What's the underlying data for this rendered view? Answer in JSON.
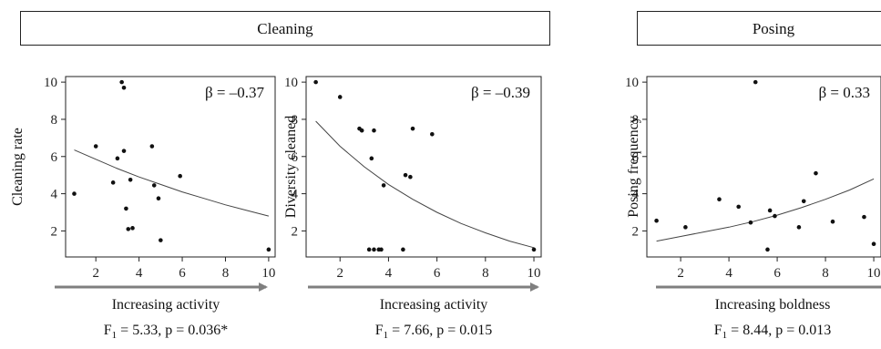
{
  "groups": {
    "cleaning": "Cleaning",
    "posing": "Posing"
  },
  "colors": {
    "axis": "#222222",
    "arrow": "#7f7f7f",
    "points": "#111111",
    "curve": "#444444"
  },
  "chart_data": [
    {
      "type": "scatter",
      "group": "Cleaning",
      "ylabel": "Cleaning rate",
      "xlabel": "Increasing activity",
      "beta": "β = –0.37",
      "stat": {
        "F": "F",
        "sub": "1",
        "rest": " = 5.33, p = 0.036*"
      },
      "xlim": [
        0.6,
        10.3
      ],
      "ylim": [
        0.6,
        10.3
      ],
      "xticks": [
        2,
        4,
        6,
        8,
        10
      ],
      "yticks": [
        2,
        4,
        6,
        8,
        10
      ],
      "points": [
        [
          1,
          4
        ],
        [
          2,
          6.55
        ],
        [
          2.8,
          4.6
        ],
        [
          3,
          5.9
        ],
        [
          3.2,
          10
        ],
        [
          3.3,
          9.7
        ],
        [
          3.3,
          6.3
        ],
        [
          3.4,
          3.2
        ],
        [
          3.5,
          2.1
        ],
        [
          3.6,
          4.75
        ],
        [
          3.7,
          2.15
        ],
        [
          4.6,
          6.55
        ],
        [
          4.7,
          4.45
        ],
        [
          4.9,
          3.75
        ],
        [
          5,
          1.5
        ],
        [
          5.9,
          4.95
        ],
        [
          10,
          1
        ]
      ],
      "fit": [
        [
          1,
          6.35
        ],
        [
          2,
          5.85
        ],
        [
          3,
          5.35
        ],
        [
          4,
          4.9
        ],
        [
          5,
          4.5
        ],
        [
          6,
          4.1
        ],
        [
          7,
          3.75
        ],
        [
          8,
          3.4
        ],
        [
          9,
          3.1
        ],
        [
          10,
          2.8
        ]
      ]
    },
    {
      "type": "scatter",
      "group": "Cleaning",
      "ylabel": "Diversity cleaned",
      "xlabel": "Increasing activity",
      "beta": "β = –0.39",
      "stat": {
        "F": "F",
        "sub": "1",
        "rest": " = 7.66, p = 0.015"
      },
      "xlim": [
        0.6,
        10.3
      ],
      "ylim": [
        0.6,
        10.3
      ],
      "xticks": [
        2,
        4,
        6,
        8,
        10
      ],
      "yticks": [
        2,
        4,
        6,
        8,
        10
      ],
      "points": [
        [
          1,
          10
        ],
        [
          2,
          9.2
        ],
        [
          2.8,
          7.5
        ],
        [
          2.9,
          7.4
        ],
        [
          3.2,
          1
        ],
        [
          3.3,
          5.9
        ],
        [
          3.4,
          7.4
        ],
        [
          3.4,
          1
        ],
        [
          3.6,
          1
        ],
        [
          3.7,
          1
        ],
        [
          3.8,
          4.45
        ],
        [
          4.6,
          1
        ],
        [
          4.7,
          5
        ],
        [
          4.9,
          4.9
        ],
        [
          5,
          7.5
        ],
        [
          5.8,
          7.2
        ],
        [
          10,
          1
        ]
      ],
      "fit": [
        [
          1,
          7.9
        ],
        [
          2,
          6.55
        ],
        [
          3,
          5.45
        ],
        [
          4,
          4.5
        ],
        [
          5,
          3.7
        ],
        [
          6,
          3.0
        ],
        [
          7,
          2.4
        ],
        [
          8,
          1.9
        ],
        [
          9,
          1.45
        ],
        [
          10,
          1.1
        ]
      ]
    },
    {
      "type": "scatter",
      "group": "Posing",
      "ylabel": "Posing frequency",
      "xlabel": "Increasing boldness",
      "beta": "β = 0.33",
      "stat": {
        "F": "F",
        "sub": "1",
        "rest": " = 8.44, p = 0.013"
      },
      "xlim": [
        0.6,
        10.3
      ],
      "ylim": [
        0.6,
        10.3
      ],
      "xticks": [
        2,
        4,
        6,
        8,
        10
      ],
      "yticks": [
        2,
        4,
        6,
        8,
        10
      ],
      "points": [
        [
          1,
          2.55
        ],
        [
          2.2,
          2.2
        ],
        [
          3.6,
          3.7
        ],
        [
          4.4,
          3.3
        ],
        [
          4.9,
          2.45
        ],
        [
          5.1,
          10
        ],
        [
          5.6,
          1
        ],
        [
          5.7,
          3.1
        ],
        [
          5.9,
          2.8
        ],
        [
          6.9,
          2.2
        ],
        [
          7.1,
          3.6
        ],
        [
          7.6,
          5.1
        ],
        [
          8.3,
          2.5
        ],
        [
          9.6,
          2.75
        ],
        [
          10,
          1.3
        ]
      ],
      "fit": [
        [
          1,
          1.45
        ],
        [
          2,
          1.7
        ],
        [
          3,
          1.95
        ],
        [
          4,
          2.2
        ],
        [
          5,
          2.5
        ],
        [
          6,
          2.85
        ],
        [
          7,
          3.25
        ],
        [
          8,
          3.7
        ],
        [
          9,
          4.2
        ],
        [
          10,
          4.8
        ]
      ]
    }
  ]
}
